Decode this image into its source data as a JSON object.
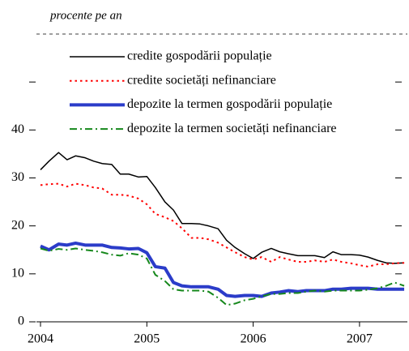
{
  "chart_data": {
    "type": "line",
    "title": "procente pe an",
    "x": [
      2004,
      2004.08,
      2004.17,
      2004.25,
      2004.33,
      2004.42,
      2004.5,
      2004.58,
      2004.67,
      2004.75,
      2004.83,
      2004.92,
      2005,
      2005.08,
      2005.17,
      2005.25,
      2005.33,
      2005.42,
      2005.5,
      2005.58,
      2005.67,
      2005.75,
      2005.83,
      2005.92,
      2006,
      2006.08,
      2006.17,
      2006.25,
      2006.33,
      2006.42,
      2006.5,
      2006.58,
      2006.67,
      2006.75,
      2006.83,
      2006.92,
      2007,
      2007.08,
      2007.17,
      2007.25,
      2007.33,
      2007.42
    ],
    "series": [
      {
        "name": "credite gospodării populație",
        "color": "#000000",
        "style": "solid",
        "width": 1.5,
        "values": [
          31.7,
          33.5,
          35.3,
          33.8,
          34.6,
          34.2,
          33.5,
          33.0,
          32.8,
          30.8,
          30.8,
          30.2,
          30.3,
          28.0,
          25.0,
          23.3,
          20.5,
          20.5,
          20.4,
          20.0,
          19.4,
          17.0,
          15.5,
          14.2,
          13.2,
          14.5,
          15.3,
          14.6,
          14.2,
          13.8,
          13.8,
          13.8,
          13.4,
          14.6,
          14.0,
          14.0,
          13.9,
          13.5,
          12.8,
          12.3,
          12.2,
          12.3
        ]
      },
      {
        "name": "credite societăți nefinanciare",
        "color": "#ff0000",
        "style": "dotted",
        "width": 2,
        "values": [
          28.5,
          28.7,
          28.8,
          28.2,
          28.8,
          28.5,
          28.0,
          27.8,
          26.5,
          26.5,
          26.3,
          25.7,
          24.5,
          22.5,
          21.8,
          21.0,
          19.5,
          17.5,
          17.5,
          17.2,
          16.5,
          15.5,
          14.5,
          13.5,
          13.0,
          13.5,
          12.5,
          13.5,
          13.0,
          12.5,
          12.5,
          12.8,
          12.5,
          13.0,
          12.5,
          12.2,
          11.8,
          11.5,
          12.0,
          12.0,
          12.2,
          12.3
        ]
      },
      {
        "name": "depozite la termen gospodării populație",
        "color": "#2b3cc9",
        "style": "solid",
        "width": 4,
        "values": [
          15.8,
          15.0,
          16.2,
          16.0,
          16.4,
          16.0,
          16.0,
          16.0,
          15.5,
          15.4,
          15.2,
          15.3,
          14.4,
          11.5,
          11.2,
          8.2,
          7.5,
          7.3,
          7.3,
          7.3,
          6.8,
          5.5,
          5.3,
          5.5,
          5.5,
          5.3,
          6.0,
          6.2,
          6.5,
          6.3,
          6.5,
          6.5,
          6.5,
          6.8,
          6.8,
          7.0,
          7.0,
          7.0,
          6.8,
          6.8,
          6.8,
          6.8
        ]
      },
      {
        "name": "depozite la termen societăți nefinanciare",
        "color": "#16881c",
        "style": "dashdot",
        "width": 2,
        "values": [
          15.3,
          14.8,
          15.2,
          15.0,
          15.3,
          15.0,
          14.8,
          14.5,
          14.0,
          13.8,
          14.3,
          14.0,
          13.2,
          9.8,
          8.5,
          6.8,
          6.5,
          6.5,
          6.5,
          6.3,
          5.0,
          3.5,
          3.8,
          4.5,
          4.8,
          5.3,
          5.8,
          5.8,
          6.0,
          6.0,
          6.3,
          6.5,
          6.3,
          6.5,
          6.5,
          6.5,
          6.5,
          6.7,
          7.0,
          7.5,
          8.2,
          7.5
        ]
      }
    ],
    "xlim": [
      2004,
      2007.45
    ],
    "xticks": [
      2004,
      2005,
      2006,
      2007
    ],
    "ylim": [
      0,
      60
    ],
    "yticks": [
      0,
      10,
      20,
      30,
      40
    ]
  }
}
